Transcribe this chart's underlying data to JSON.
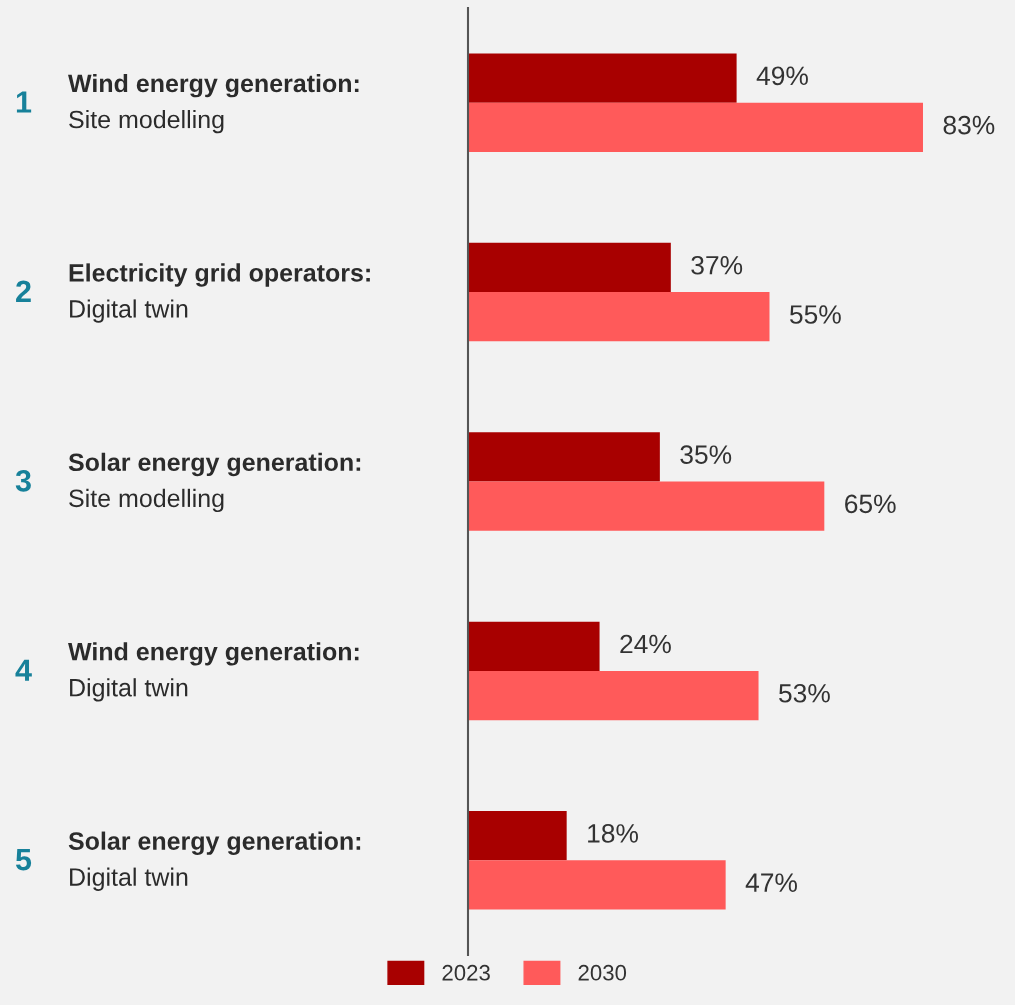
{
  "chart_data": {
    "type": "bar",
    "orientation": "horizontal",
    "relative": false,
    "categories": [
      "Wind energy generation:\nSite modelling",
      "Electricity grid operators:\nDigital twin",
      "Solar energy generation:\nSite modelling",
      "Wind energy generation:\nDigital twin",
      "Solar energy generation:\nDigital twin"
    ],
    "series": [
      {
        "name": "2023",
        "color": "#a80000",
        "values": [
          49,
          37,
          35,
          24,
          18
        ],
        "value_labels": [
          "49%",
          "37%",
          "35%",
          "24%",
          "18%"
        ]
      },
      {
        "name": "2030",
        "color": "#ff5a5a",
        "values": [
          83,
          55,
          65,
          53,
          47
        ],
        "value_labels": [
          "83%",
          "55%",
          "65%",
          "53%",
          "47%"
        ]
      }
    ],
    "annotations": [
      "1",
      "2",
      "3",
      "4",
      "5"
    ],
    "legend": "bottom"
  }
}
